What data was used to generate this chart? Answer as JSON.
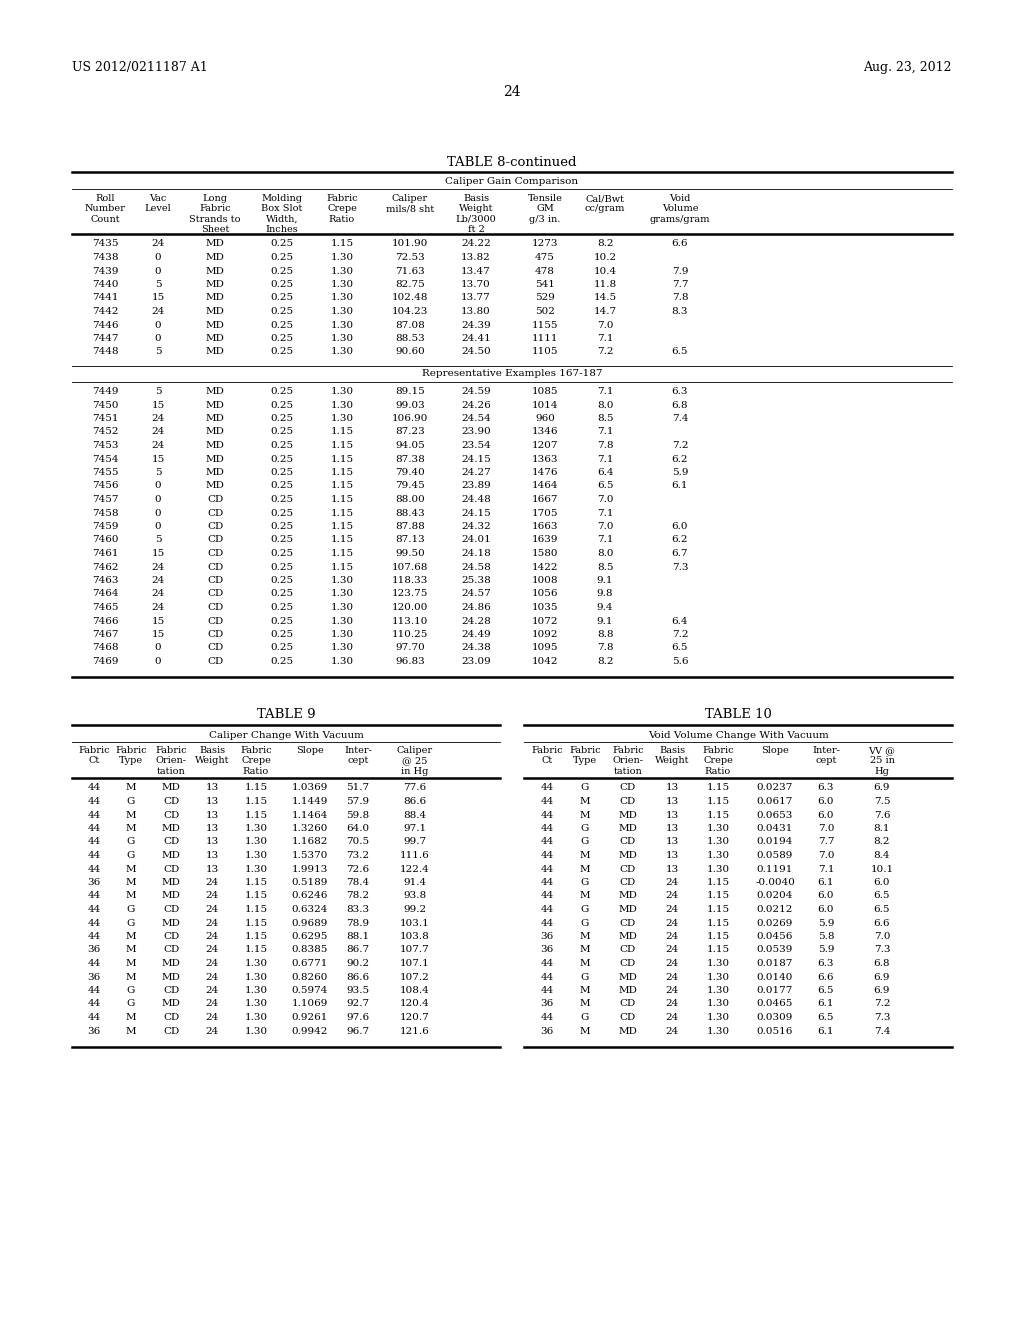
{
  "header_left": "US 2012/0211187 A1",
  "header_right": "Aug. 23, 2012",
  "page_number": "24",
  "table8_title": "TABLE 8-continued",
  "table8_subtitle": "Caliper Gain Comparison",
  "table8_data1": [
    [
      "7435",
      "24",
      "MD",
      "0.25",
      "1.15",
      "101.90",
      "24.22",
      "1273",
      "8.2",
      "6.6"
    ],
    [
      "7438",
      "0",
      "MD",
      "0.25",
      "1.30",
      "72.53",
      "13.82",
      "475",
      "10.2",
      ""
    ],
    [
      "7439",
      "0",
      "MD",
      "0.25",
      "1.30",
      "71.63",
      "13.47",
      "478",
      "10.4",
      "7.9"
    ],
    [
      "7440",
      "5",
      "MD",
      "0.25",
      "1.30",
      "82.75",
      "13.70",
      "541",
      "11.8",
      "7.7"
    ],
    [
      "7441",
      "15",
      "MD",
      "0.25",
      "1.30",
      "102.48",
      "13.77",
      "529",
      "14.5",
      "7.8"
    ],
    [
      "7442",
      "24",
      "MD",
      "0.25",
      "1.30",
      "104.23",
      "13.80",
      "502",
      "14.7",
      "8.3"
    ],
    [
      "7446",
      "0",
      "MD",
      "0.25",
      "1.30",
      "87.08",
      "24.39",
      "1155",
      "7.0",
      ""
    ],
    [
      "7447",
      "0",
      "MD",
      "0.25",
      "1.30",
      "88.53",
      "24.41",
      "1111",
      "7.1",
      ""
    ],
    [
      "7448",
      "5",
      "MD",
      "0.25",
      "1.30",
      "90.60",
      "24.50",
      "1105",
      "7.2",
      "6.5"
    ]
  ],
  "table8_section2_label": "Representative Examples 167-187",
  "table8_data2": [
    [
      "7449",
      "5",
      "MD",
      "0.25",
      "1.30",
      "89.15",
      "24.59",
      "1085",
      "7.1",
      "6.3"
    ],
    [
      "7450",
      "15",
      "MD",
      "0.25",
      "1.30",
      "99.03",
      "24.26",
      "1014",
      "8.0",
      "6.8"
    ],
    [
      "7451",
      "24",
      "MD",
      "0.25",
      "1.30",
      "106.90",
      "24.54",
      "960",
      "8.5",
      "7.4"
    ],
    [
      "7452",
      "24",
      "MD",
      "0.25",
      "1.15",
      "87.23",
      "23.90",
      "1346",
      "7.1",
      ""
    ],
    [
      "7453",
      "24",
      "MD",
      "0.25",
      "1.15",
      "94.05",
      "23.54",
      "1207",
      "7.8",
      "7.2"
    ],
    [
      "7454",
      "15",
      "MD",
      "0.25",
      "1.15",
      "87.38",
      "24.15",
      "1363",
      "7.1",
      "6.2"
    ],
    [
      "7455",
      "5",
      "MD",
      "0.25",
      "1.15",
      "79.40",
      "24.27",
      "1476",
      "6.4",
      "5.9"
    ],
    [
      "7456",
      "0",
      "MD",
      "0.25",
      "1.15",
      "79.45",
      "23.89",
      "1464",
      "6.5",
      "6.1"
    ],
    [
      "7457",
      "0",
      "CD",
      "0.25",
      "1.15",
      "88.00",
      "24.48",
      "1667",
      "7.0",
      ""
    ],
    [
      "7458",
      "0",
      "CD",
      "0.25",
      "1.15",
      "88.43",
      "24.15",
      "1705",
      "7.1",
      ""
    ],
    [
      "7459",
      "0",
      "CD",
      "0.25",
      "1.15",
      "87.88",
      "24.32",
      "1663",
      "7.0",
      "6.0"
    ],
    [
      "7460",
      "5",
      "CD",
      "0.25",
      "1.15",
      "87.13",
      "24.01",
      "1639",
      "7.1",
      "6.2"
    ],
    [
      "7461",
      "15",
      "CD",
      "0.25",
      "1.15",
      "99.50",
      "24.18",
      "1580",
      "8.0",
      "6.7"
    ],
    [
      "7462",
      "24",
      "CD",
      "0.25",
      "1.15",
      "107.68",
      "24.58",
      "1422",
      "8.5",
      "7.3"
    ],
    [
      "7463",
      "24",
      "CD",
      "0.25",
      "1.30",
      "118.33",
      "25.38",
      "1008",
      "9.1",
      ""
    ],
    [
      "7464",
      "24",
      "CD",
      "0.25",
      "1.30",
      "123.75",
      "24.57",
      "1056",
      "9.8",
      ""
    ],
    [
      "7465",
      "24",
      "CD",
      "0.25",
      "1.30",
      "120.00",
      "24.86",
      "1035",
      "9.4",
      ""
    ],
    [
      "7466",
      "15",
      "CD",
      "0.25",
      "1.30",
      "113.10",
      "24.28",
      "1072",
      "9.1",
      "6.4"
    ],
    [
      "7467",
      "15",
      "CD",
      "0.25",
      "1.30",
      "110.25",
      "24.49",
      "1092",
      "8.8",
      "7.2"
    ],
    [
      "7468",
      "0",
      "CD",
      "0.25",
      "1.30",
      "97.70",
      "24.38",
      "1095",
      "7.8",
      "6.5"
    ],
    [
      "7469",
      "0",
      "CD",
      "0.25",
      "1.30",
      "96.83",
      "23.09",
      "1042",
      "8.2",
      "5.6"
    ]
  ],
  "table9_title": "TABLE 9",
  "table9_subtitle": "Caliper Change With Vacuum",
  "table9_data": [
    [
      "44",
      "M",
      "MD",
      "13",
      "1.15",
      "1.0369",
      "51.7",
      "77.6"
    ],
    [
      "44",
      "G",
      "CD",
      "13",
      "1.15",
      "1.1449",
      "57.9",
      "86.6"
    ],
    [
      "44",
      "M",
      "CD",
      "13",
      "1.15",
      "1.1464",
      "59.8",
      "88.4"
    ],
    [
      "44",
      "M",
      "MD",
      "13",
      "1.30",
      "1.3260",
      "64.0",
      "97.1"
    ],
    [
      "44",
      "G",
      "CD",
      "13",
      "1.30",
      "1.1682",
      "70.5",
      "99.7"
    ],
    [
      "44",
      "G",
      "MD",
      "13",
      "1.30",
      "1.5370",
      "73.2",
      "111.6"
    ],
    [
      "44",
      "M",
      "CD",
      "13",
      "1.30",
      "1.9913",
      "72.6",
      "122.4"
    ],
    [
      "36",
      "M",
      "MD",
      "24",
      "1.15",
      "0.5189",
      "78.4",
      "91.4"
    ],
    [
      "44",
      "M",
      "MD",
      "24",
      "1.15",
      "0.6246",
      "78.2",
      "93.8"
    ],
    [
      "44",
      "G",
      "CD",
      "24",
      "1.15",
      "0.6324",
      "83.3",
      "99.2"
    ],
    [
      "44",
      "G",
      "MD",
      "24",
      "1.15",
      "0.9689",
      "78.9",
      "103.1"
    ],
    [
      "44",
      "M",
      "CD",
      "24",
      "1.15",
      "0.6295",
      "88.1",
      "103.8"
    ],
    [
      "36",
      "M",
      "CD",
      "24",
      "1.15",
      "0.8385",
      "86.7",
      "107.7"
    ],
    [
      "44",
      "M",
      "MD",
      "24",
      "1.30",
      "0.6771",
      "90.2",
      "107.1"
    ],
    [
      "36",
      "M",
      "MD",
      "24",
      "1.30",
      "0.8260",
      "86.6",
      "107.2"
    ],
    [
      "44",
      "G",
      "CD",
      "24",
      "1.30",
      "0.5974",
      "93.5",
      "108.4"
    ],
    [
      "44",
      "G",
      "MD",
      "24",
      "1.30",
      "1.1069",
      "92.7",
      "120.4"
    ],
    [
      "44",
      "M",
      "CD",
      "24",
      "1.30",
      "0.9261",
      "97.6",
      "120.7"
    ],
    [
      "36",
      "M",
      "CD",
      "24",
      "1.30",
      "0.9942",
      "96.7",
      "121.6"
    ]
  ],
  "table10_title": "TABLE 10",
  "table10_subtitle": "Void Volume Change With Vacuum",
  "table10_data": [
    [
      "44",
      "G",
      "CD",
      "13",
      "1.15",
      "0.0237",
      "6.3",
      "6.9"
    ],
    [
      "44",
      "M",
      "CD",
      "13",
      "1.15",
      "0.0617",
      "6.0",
      "7.5"
    ],
    [
      "44",
      "M",
      "MD",
      "13",
      "1.15",
      "0.0653",
      "6.0",
      "7.6"
    ],
    [
      "44",
      "G",
      "MD",
      "13",
      "1.30",
      "0.0431",
      "7.0",
      "8.1"
    ],
    [
      "44",
      "G",
      "CD",
      "13",
      "1.30",
      "0.0194",
      "7.7",
      "8.2"
    ],
    [
      "44",
      "M",
      "MD",
      "13",
      "1.30",
      "0.0589",
      "7.0",
      "8.4"
    ],
    [
      "44",
      "M",
      "CD",
      "13",
      "1.30",
      "0.1191",
      "7.1",
      "10.1"
    ],
    [
      "44",
      "G",
      "CD",
      "24",
      "1.15",
      "-0.0040",
      "6.1",
      "6.0"
    ],
    [
      "44",
      "M",
      "MD",
      "24",
      "1.15",
      "0.0204",
      "6.0",
      "6.5"
    ],
    [
      "44",
      "G",
      "MD",
      "24",
      "1.15",
      "0.0212",
      "6.0",
      "6.5"
    ],
    [
      "44",
      "G",
      "CD",
      "24",
      "1.15",
      "0.0269",
      "5.9",
      "6.6"
    ],
    [
      "36",
      "M",
      "MD",
      "24",
      "1.15",
      "0.0456",
      "5.8",
      "7.0"
    ],
    [
      "36",
      "M",
      "CD",
      "24",
      "1.15",
      "0.0539",
      "5.9",
      "7.3"
    ],
    [
      "44",
      "M",
      "CD",
      "24",
      "1.30",
      "0.0187",
      "6.3",
      "6.8"
    ],
    [
      "44",
      "G",
      "MD",
      "24",
      "1.30",
      "0.0140",
      "6.6",
      "6.9"
    ],
    [
      "44",
      "M",
      "MD",
      "24",
      "1.30",
      "0.0177",
      "6.5",
      "6.9"
    ],
    [
      "36",
      "M",
      "CD",
      "24",
      "1.30",
      "0.0465",
      "6.1",
      "7.2"
    ],
    [
      "44",
      "G",
      "CD",
      "24",
      "1.30",
      "0.0309",
      "6.5",
      "7.3"
    ],
    [
      "36",
      "M",
      "MD",
      "24",
      "1.30",
      "0.0516",
      "6.1",
      "7.4"
    ]
  ]
}
